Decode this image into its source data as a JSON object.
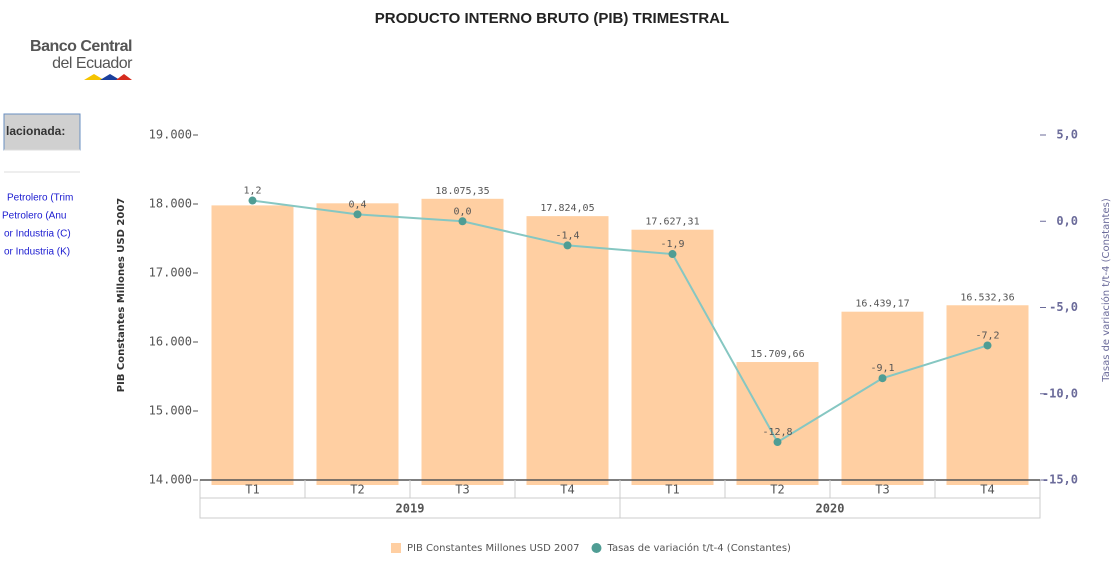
{
  "logo": {
    "line1": "Banco Central",
    "line2": "del Ecuador"
  },
  "sidebar": {
    "header": "lacionada:",
    "items": [
      "Petrolero (Trim",
      "Petrolero (Anu",
      "or Industria (C)",
      "or Industria (K)"
    ]
  },
  "chart_data": {
    "type": "bar_line",
    "title": "PRODUCTO INTERNO BRUTO (PIB) TRIMESTRAL",
    "ylabel": "PIB Constantes Millones USD 2007",
    "y2label": "Tasas de variación t/t-4 (Constantes)",
    "categories": [
      "T1",
      "T2",
      "T3",
      "T4",
      "T1",
      "T2",
      "T3",
      "T4"
    ],
    "groups": [
      {
        "label": "2019",
        "count": 4
      },
      {
        "label": "2020",
        "count": 4
      }
    ],
    "series": [
      {
        "name": "PIB Constantes Millones USD 2007",
        "type": "bar",
        "color": "#ffcfa2",
        "values": [
          17980,
          18010,
          18075.35,
          17824.05,
          17627.31,
          15709.66,
          16439.17,
          16532.36
        ],
        "value_labels": [
          null,
          null,
          "18.075,35",
          "17.824,05",
          "17.627,31",
          "15.709,66",
          "16.439,17",
          "16.532,36"
        ]
      },
      {
        "name": "Tasas de variación t/t-4 (Constantes)",
        "type": "line",
        "axis": "y2",
        "color": "#86c7c2",
        "marker_color": "#4f9d94",
        "values": [
          1.2,
          0.4,
          0.0,
          -1.4,
          -1.9,
          -12.8,
          -9.1,
          -7.2
        ],
        "value_labels": [
          "1,2",
          "0,4",
          "0,0",
          "-1,4",
          "-1,9",
          "-12,8",
          "-9,1",
          "-7,2"
        ]
      }
    ],
    "ylim": [
      14000,
      19000
    ],
    "yticks": [
      {
        "value": 14000,
        "label": "14.000"
      },
      {
        "value": 15000,
        "label": "15.000"
      },
      {
        "value": 16000,
        "label": "16.000"
      },
      {
        "value": 17000,
        "label": "17.000"
      },
      {
        "value": 18000,
        "label": "18.000"
      },
      {
        "value": 19000,
        "label": "19.000"
      }
    ],
    "y2lim": [
      -15,
      5
    ],
    "y2ticks": [
      {
        "value": -15,
        "label": "-15,0"
      },
      {
        "value": -10,
        "label": "-10,0"
      },
      {
        "value": -5,
        "label": "-5,0"
      },
      {
        "value": 0,
        "label": "0,0"
      },
      {
        "value": 5,
        "label": "5,0"
      }
    ]
  }
}
